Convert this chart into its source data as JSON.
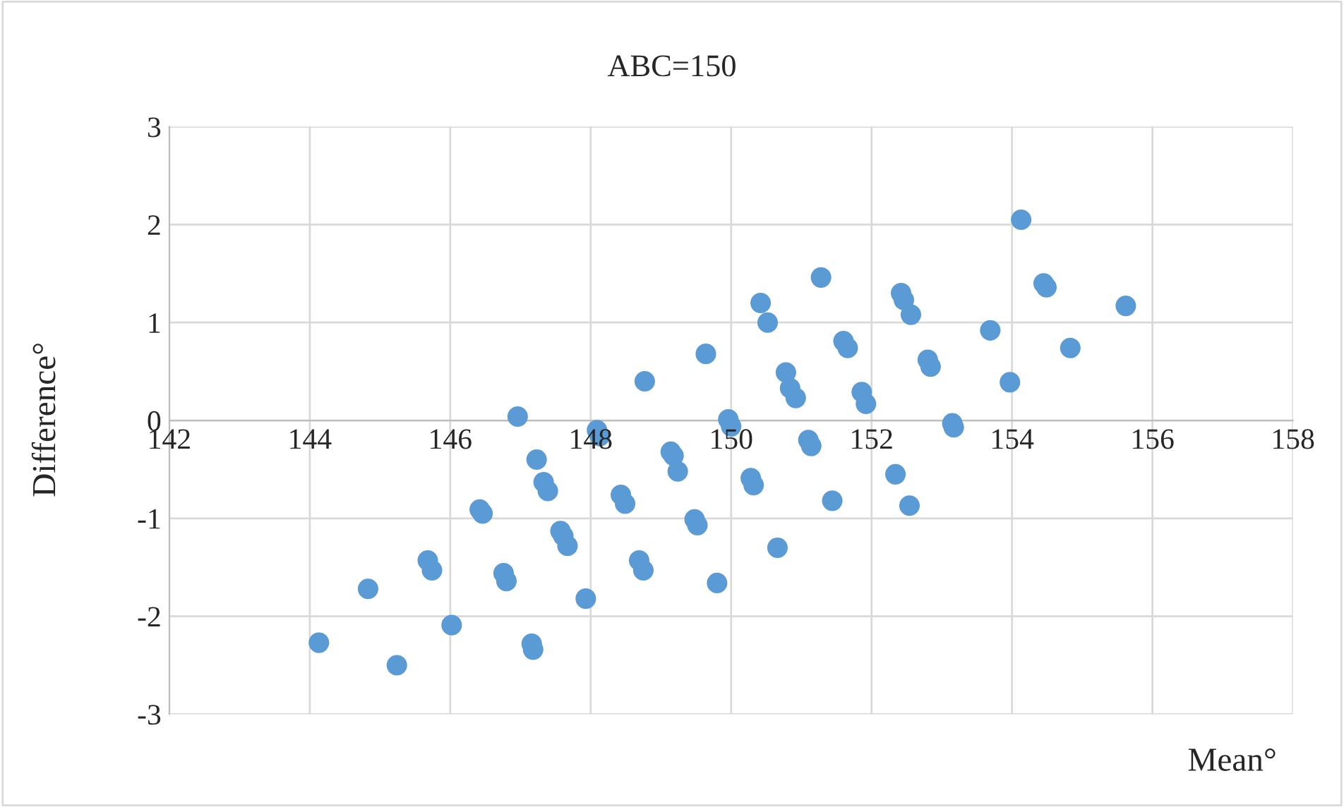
{
  "chart_data": {
    "type": "scatter",
    "title": "ABC=150",
    "xlabel": "Mean°",
    "ylabel": "Difference°",
    "xlim": [
      142,
      158
    ],
    "xticks": [
      142,
      144,
      146,
      148,
      150,
      152,
      154,
      156,
      158
    ],
    "ylim": [
      -3,
      3
    ],
    "yticks": [
      -3,
      -2,
      -1,
      0,
      1,
      2,
      3
    ],
    "grid": true,
    "marker": "circle",
    "series": [
      {
        "color": "#5b9bd5",
        "x": [
          144.13,
          144.83,
          145.24,
          145.68,
          145.74,
          146.02,
          146.42,
          146.46,
          146.96,
          146.76,
          146.8,
          147.16,
          147.18,
          147.23,
          147.33,
          147.39,
          147.57,
          147.61,
          147.67,
          147.93,
          148.09,
          148.13,
          148.43,
          148.49,
          148.77,
          148.69,
          148.75,
          149.14,
          149.18,
          149.24,
          149.48,
          149.52,
          149.64,
          149.8,
          149.96,
          150.0,
          150.28,
          150.32,
          150.42,
          150.52,
          150.66,
          150.78,
          150.84,
          150.92,
          151.1,
          151.14,
          151.28,
          151.44,
          151.6,
          151.66,
          151.86,
          151.92,
          152.34,
          152.42,
          152.46,
          152.56,
          152.54,
          152.8,
          152.84,
          153.15,
          153.17,
          153.69,
          153.97,
          154.13,
          154.45,
          154.49,
          154.83,
          155.62
        ],
        "values": [
          -2.27,
          -1.72,
          -2.5,
          -1.43,
          -1.53,
          -2.09,
          -0.91,
          -0.95,
          0.04,
          -1.56,
          -1.64,
          -2.28,
          -2.34,
          -0.4,
          -0.63,
          -0.72,
          -1.13,
          -1.18,
          -1.28,
          -1.82,
          -0.1,
          -0.16,
          -0.76,
          -0.85,
          0.4,
          -1.43,
          -1.53,
          -0.32,
          -0.36,
          -0.52,
          -1.01,
          -1.07,
          0.68,
          -1.66,
          0.01,
          -0.06,
          -0.59,
          -0.66,
          1.2,
          1.0,
          -1.3,
          0.49,
          0.33,
          0.23,
          -0.2,
          -0.26,
          1.46,
          -0.82,
          0.81,
          0.74,
          0.29,
          0.17,
          -0.55,
          1.3,
          1.23,
          1.08,
          -0.87,
          0.62,
          0.55,
          -0.03,
          -0.07,
          0.92,
          0.39,
          2.05,
          1.4,
          1.36,
          0.74,
          1.17
        ]
      }
    ]
  }
}
